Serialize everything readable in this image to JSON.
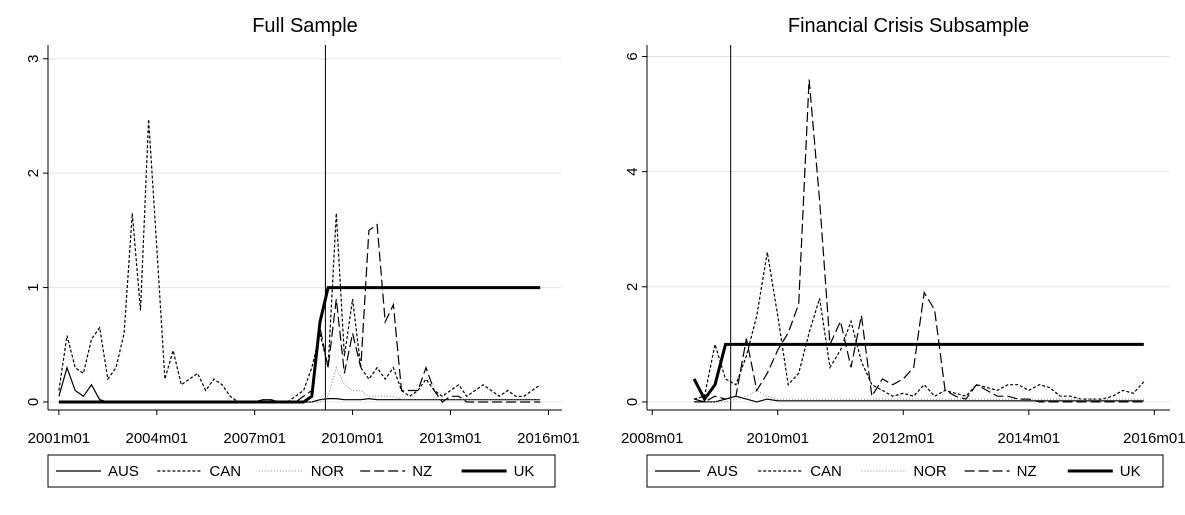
{
  "chart_data": [
    {
      "type": "line",
      "title": "Full Sample",
      "x": [
        "2001m01",
        "2001m04",
        "2001m07",
        "2001m10",
        "2002m01",
        "2002m04",
        "2002m07",
        "2002m10",
        "2003m01",
        "2003m04",
        "2003m07",
        "2003m10",
        "2004m01",
        "2004m04",
        "2004m07",
        "2004m10",
        "2005m01",
        "2005m04",
        "2005m07",
        "2005m10",
        "2006m01",
        "2006m04",
        "2006m07",
        "2006m10",
        "2007m01",
        "2007m04",
        "2007m07",
        "2007m10",
        "2008m01",
        "2008m04",
        "2008m07",
        "2008m10",
        "2009m01",
        "2009m04",
        "2009m07",
        "2009m10",
        "2010m01",
        "2010m04",
        "2010m07",
        "2010m10",
        "2011m01",
        "2011m04",
        "2011m07",
        "2011m10",
        "2012m01",
        "2012m04",
        "2012m07",
        "2012m10",
        "2013m01",
        "2013m04",
        "2013m07",
        "2013m10",
        "2014m01",
        "2014m04",
        "2014m07",
        "2014m10",
        "2015m01",
        "2015m04",
        "2015m07",
        "2015m10"
      ],
      "series": [
        {
          "name": "AUS",
          "color": "#000000",
          "dash": "none",
          "width": 1.2,
          "values": [
            0.05,
            0.3,
            0.1,
            0.05,
            0.15,
            0.02,
            0,
            0,
            0,
            0,
            0,
            0,
            0,
            0,
            0,
            0,
            0,
            0,
            0,
            0,
            0,
            0,
            0,
            0,
            0,
            0.02,
            0.02,
            0,
            0,
            0,
            0,
            0,
            0.02,
            0.03,
            0.03,
            0.02,
            0.02,
            0.02,
            0.03,
            0.02,
            0.02,
            0.02,
            0.02,
            0.02,
            0.02,
            0.02,
            0.02,
            0.02,
            0.02,
            0.02,
            0.02,
            0.02,
            0.02,
            0.02,
            0.02,
            0.02,
            0.02,
            0.02,
            0.02,
            0.02
          ]
        },
        {
          "name": "CAN",
          "color": "#000000",
          "dash": "3,2",
          "width": 1.2,
          "values": [
            0.1,
            0.58,
            0.3,
            0.25,
            0.55,
            0.65,
            0.2,
            0.3,
            0.6,
            1.65,
            0.8,
            2.47,
            1.35,
            0.2,
            0.45,
            0.15,
            0.2,
            0.25,
            0.1,
            0.2,
            0.15,
            0.05,
            0,
            0,
            0,
            0,
            0,
            0,
            0,
            0.05,
            0.1,
            0.3,
            0.6,
            0.3,
            1.65,
            0.4,
            0.9,
            0.3,
            0.2,
            0.3,
            0.2,
            0.3,
            0.1,
            0.05,
            0.1,
            0.2,
            0.1,
            0.05,
            0.1,
            0.15,
            0.05,
            0.1,
            0.15,
            0.1,
            0.05,
            0.1,
            0.05,
            0.05,
            0.1,
            0.15
          ]
        },
        {
          "name": "NOR",
          "color": "#888888",
          "dash": "1,2",
          "width": 1,
          "values": [
            0,
            0,
            0,
            0,
            0,
            0,
            0,
            0,
            0,
            0,
            0,
            0,
            0,
            0,
            0,
            0,
            0,
            0,
            0,
            0,
            0,
            0,
            0,
            0,
            0,
            0,
            0,
            0,
            0,
            0,
            0,
            0,
            0,
            0.05,
            0.3,
            0.15,
            0.1,
            0.1,
            0.05,
            0.05,
            0.05,
            0.05,
            0.02,
            0.02,
            0.02,
            0.02,
            0.02,
            0.02,
            0.02,
            0.02,
            0.02,
            0.02,
            0.02,
            0.02,
            0.02,
            0.02,
            0.02,
            0.02,
            0.02,
            0.02
          ]
        },
        {
          "name": "NZ",
          "color": "#000000",
          "dash": "10,4",
          "width": 1.2,
          "values": [
            0,
            0,
            0,
            0,
            0,
            0,
            0,
            0,
            0,
            0,
            0,
            0,
            0,
            0,
            0,
            0,
            0,
            0,
            0,
            0,
            0,
            0,
            0,
            0,
            0,
            0,
            0,
            0,
            0,
            0,
            0.05,
            0.1,
            0.65,
            0.3,
            0.9,
            0.25,
            0.6,
            0.3,
            1.5,
            1.55,
            0.7,
            0.85,
            0.1,
            0.1,
            0.1,
            0.3,
            0.1,
            0,
            0.05,
            0.05,
            0,
            0,
            0,
            0,
            0,
            0,
            0,
            0,
            0,
            0
          ]
        },
        {
          "name": "UK",
          "color": "#000000",
          "dash": "none",
          "width": 3,
          "values": [
            0,
            0,
            0,
            0,
            0,
            0,
            0,
            0,
            0,
            0,
            0,
            0,
            0,
            0,
            0,
            0,
            0,
            0,
            0,
            0,
            0,
            0,
            0,
            0,
            0,
            0,
            0,
            0,
            0,
            0,
            0,
            0.05,
            0.7,
            1,
            1,
            1,
            1,
            1,
            1,
            1,
            1,
            1,
            1,
            1,
            1,
            1,
            1,
            1,
            1,
            1,
            1,
            1,
            1,
            1,
            1,
            1,
            1,
            1,
            1,
            1
          ]
        }
      ],
      "vline": "2009m03",
      "xlim": [
        "2000m09",
        "2016m06"
      ],
      "xticks": [
        "2001m01",
        "2004m01",
        "2007m01",
        "2010m01",
        "2013m01",
        "2016m01"
      ],
      "ylim": [
        -0.07,
        3.12
      ],
      "yticks": [
        0,
        1,
        2,
        3
      ],
      "grid": true
    },
    {
      "type": "line",
      "title": "Financial Crisis Subsample",
      "x": [
        "2008m09",
        "2008m11",
        "2009m01",
        "2009m03",
        "2009m05",
        "2009m07",
        "2009m09",
        "2009m11",
        "2010m01",
        "2010m03",
        "2010m05",
        "2010m07",
        "2010m09",
        "2010m11",
        "2011m01",
        "2011m03",
        "2011m05",
        "2011m07",
        "2011m09",
        "2011m11",
        "2012m01",
        "2012m03",
        "2012m05",
        "2012m07",
        "2012m09",
        "2012m11",
        "2013m01",
        "2013m03",
        "2013m05",
        "2013m07",
        "2013m09",
        "2013m11",
        "2014m01",
        "2014m03",
        "2014m05",
        "2014m07",
        "2014m09",
        "2014m11",
        "2015m01",
        "2015m03",
        "2015m05",
        "2015m07",
        "2015m09",
        "2015m11"
      ],
      "series": [
        {
          "name": "AUS",
          "color": "#000000",
          "dash": "none",
          "width": 1.2,
          "values": [
            0.05,
            0,
            0,
            0.05,
            0.1,
            0.05,
            0,
            0.05,
            0.02,
            0.02,
            0.02,
            0.02,
            0.02,
            0.02,
            0.02,
            0.02,
            0.02,
            0.02,
            0.02,
            0.02,
            0.02,
            0.02,
            0.02,
            0.02,
            0.02,
            0.02,
            0.02,
            0.02,
            0.02,
            0.02,
            0.02,
            0.02,
            0.02,
            0.02,
            0.02,
            0.02,
            0.02,
            0.02,
            0.02,
            0.02,
            0.02,
            0.02,
            0.02,
            0.02
          ]
        },
        {
          "name": "CAN",
          "color": "#000000",
          "dash": "3,2",
          "width": 1.2,
          "values": [
            0.05,
            0.1,
            1.0,
            0.4,
            0.3,
            0.8,
            1.5,
            2.6,
            1.5,
            0.3,
            0.5,
            1.2,
            1.8,
            0.6,
            0.9,
            1.4,
            0.7,
            0.3,
            0.2,
            0.1,
            0.15,
            0.1,
            0.3,
            0.1,
            0.2,
            0.15,
            0.1,
            0.3,
            0.25,
            0.2,
            0.3,
            0.3,
            0.2,
            0.3,
            0.25,
            0.1,
            0.1,
            0.05,
            0.05,
            0.05,
            0.1,
            0.2,
            0.15,
            0.35
          ]
        },
        {
          "name": "NOR",
          "color": "#888888",
          "dash": "1,2",
          "width": 1,
          "values": [
            0,
            0,
            0,
            0,
            0.05,
            0.1,
            0.2,
            0.1,
            0.05,
            0.05,
            0.05,
            0.05,
            0.05,
            0.05,
            0.05,
            0.05,
            0.05,
            0.05,
            0.05,
            0.05,
            0.05,
            0.05,
            0.05,
            0.05,
            0.05,
            0.05,
            0.05,
            0.05,
            0.05,
            0.05,
            0.05,
            0.05,
            0.05,
            0.05,
            0.05,
            0.05,
            0.05,
            0.05,
            0.05,
            0.05,
            0.05,
            0.05,
            0.05,
            0.05
          ]
        },
        {
          "name": "NZ",
          "color": "#000000",
          "dash": "10,4",
          "width": 1.2,
          "values": [
            0,
            0,
            0.1,
            0.05,
            0.1,
            1.1,
            0.2,
            0.5,
            0.9,
            1.2,
            1.7,
            5.6,
            3.5,
            1.0,
            1.4,
            0.6,
            1.5,
            0.1,
            0.4,
            0.3,
            0.4,
            0.6,
            1.9,
            1.6,
            0.2,
            0.1,
            0.05,
            0.3,
            0.2,
            0.1,
            0.1,
            0.05,
            0.05,
            0,
            0,
            0,
            0,
            0,
            0,
            0,
            0,
            0,
            0,
            0
          ]
        },
        {
          "name": "UK",
          "color": "#000000",
          "dash": "none",
          "width": 3,
          "values": [
            0.4,
            0.05,
            0.3,
            1,
            1,
            1,
            1,
            1,
            1,
            1,
            1,
            1,
            1,
            1,
            1,
            1,
            1,
            1,
            1,
            1,
            1,
            1,
            1,
            1,
            1,
            1,
            1,
            1,
            1,
            1,
            1,
            1,
            1,
            1,
            1,
            1,
            1,
            1,
            1,
            1,
            1,
            1,
            1,
            1
          ]
        }
      ],
      "vline": "2009m04",
      "xlim": [
        "2007m12",
        "2016m04"
      ],
      "xticks": [
        "2008m01",
        "2010m01",
        "2012m01",
        "2014m01",
        "2016m01"
      ],
      "ylim": [
        -0.14,
        6.2
      ],
      "yticks": [
        0,
        2,
        4,
        6
      ],
      "grid": true
    }
  ]
}
